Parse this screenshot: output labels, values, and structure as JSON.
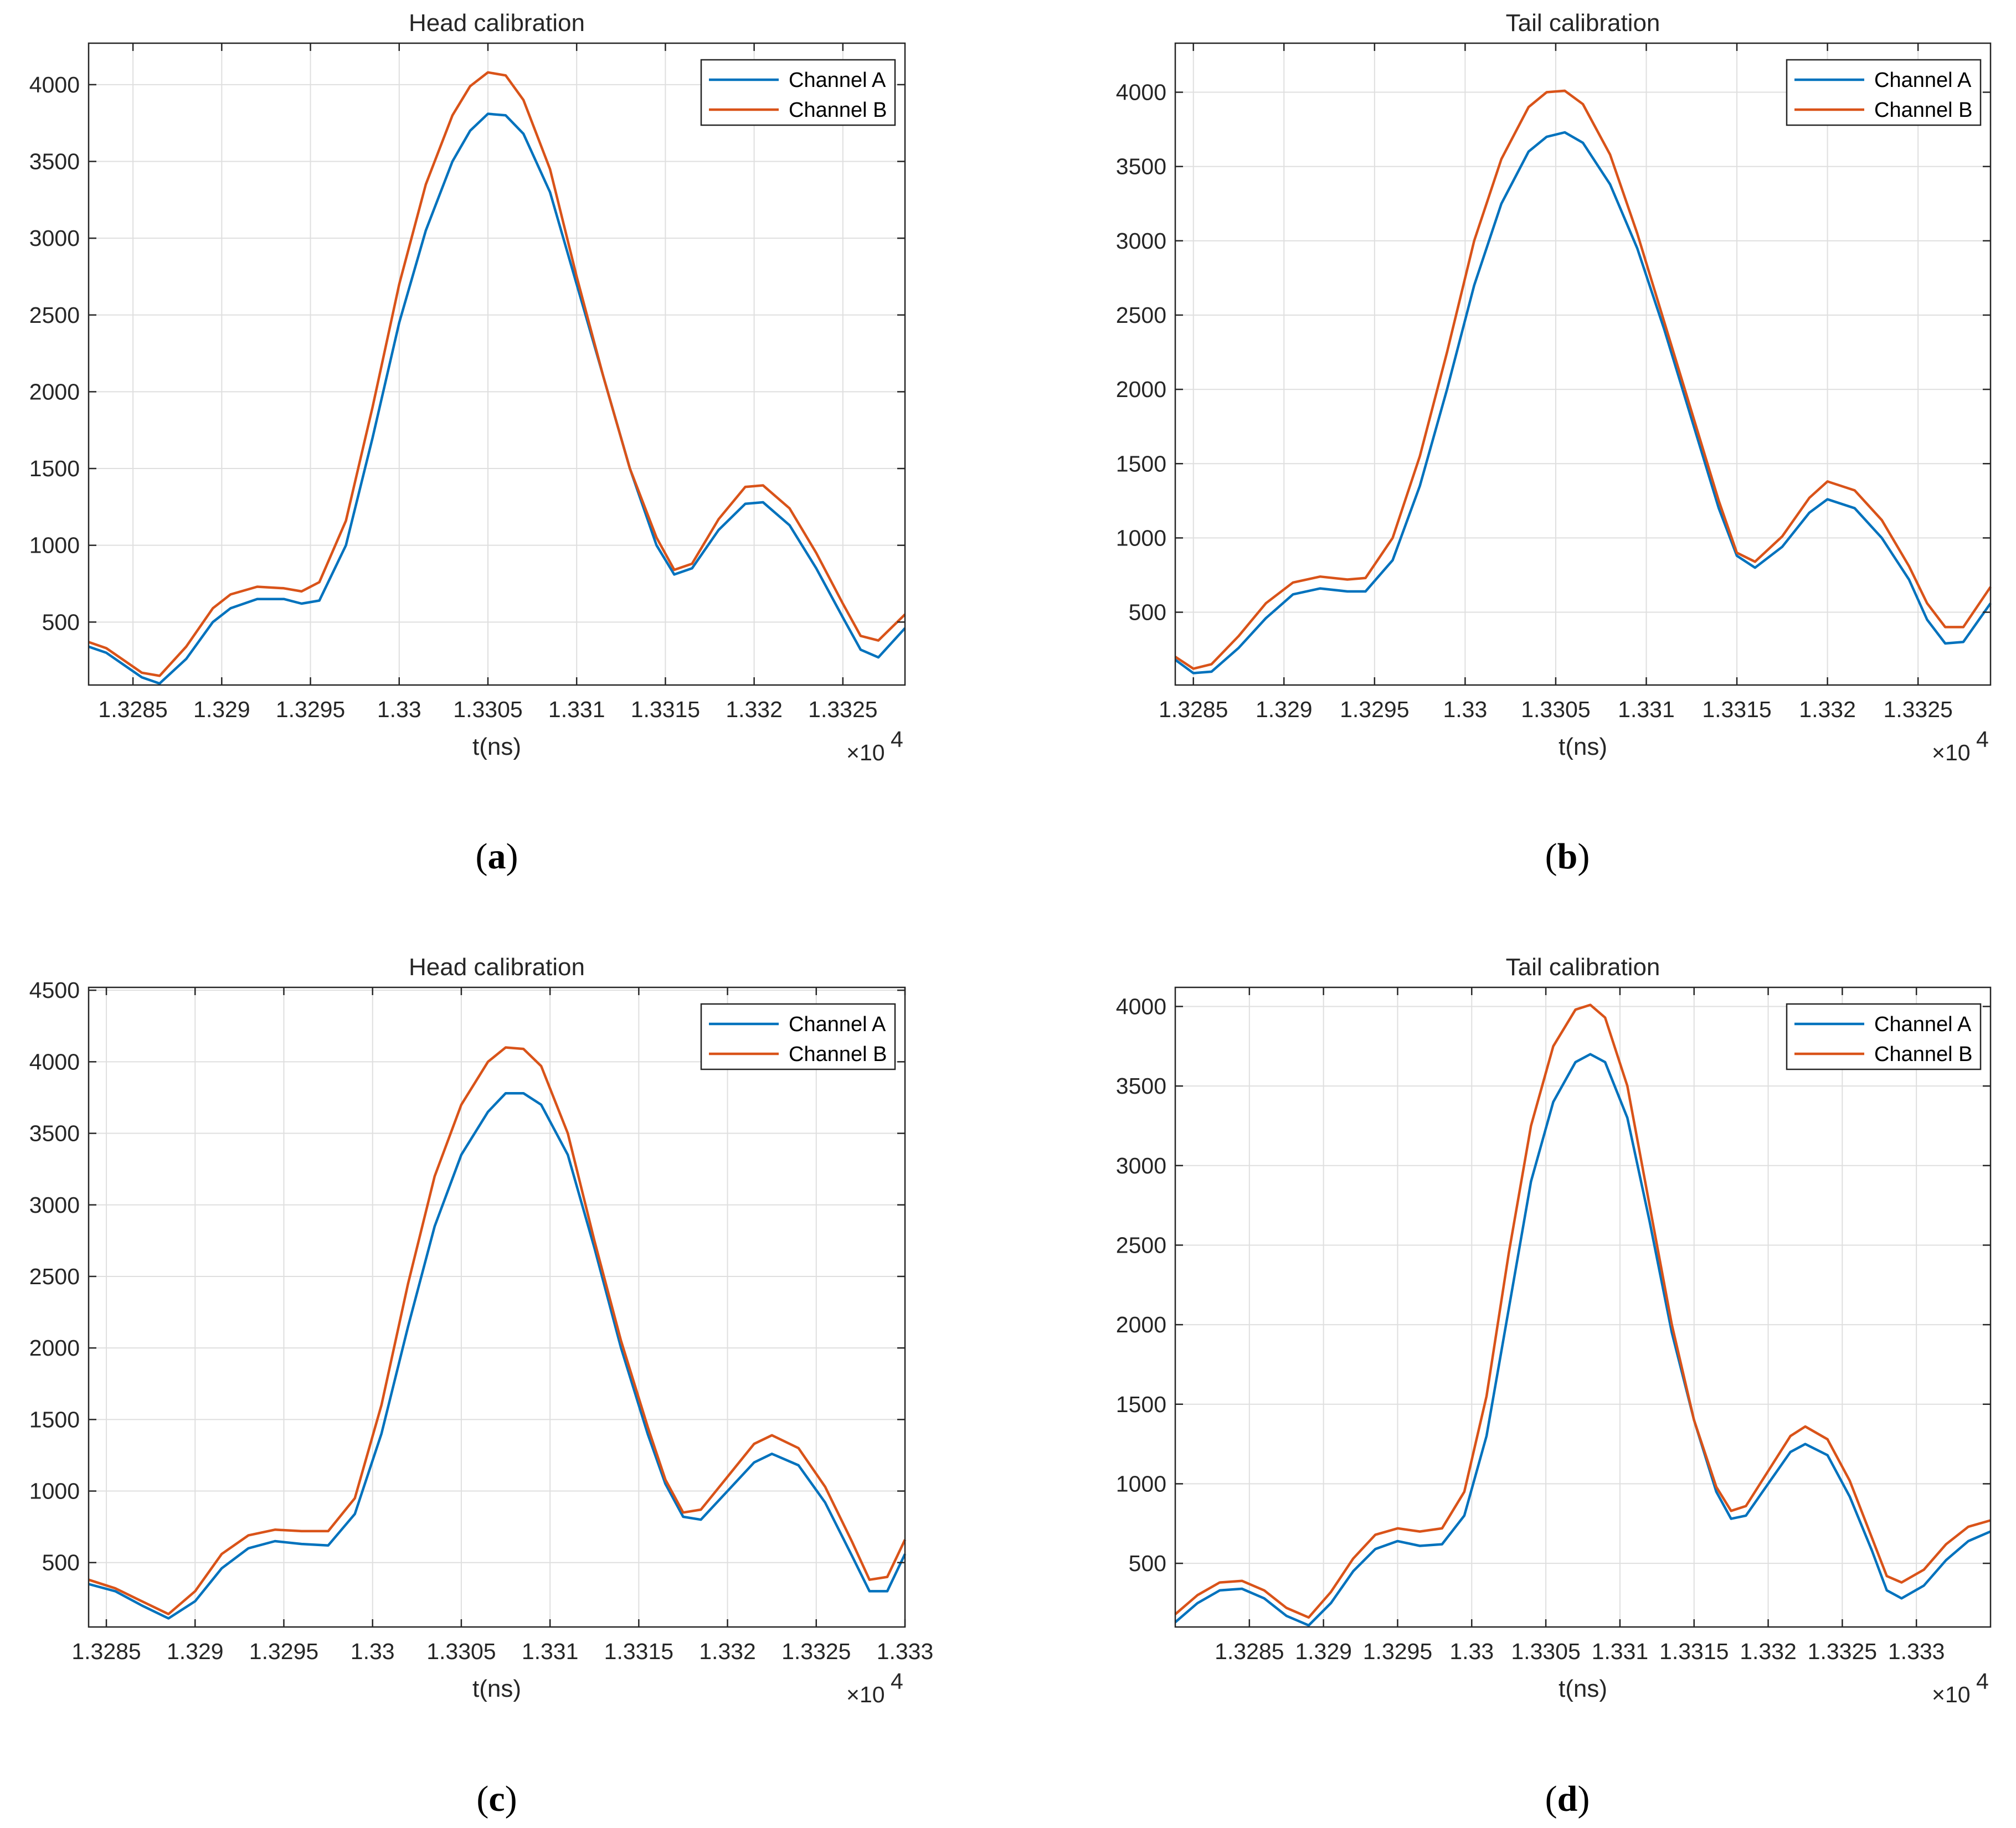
{
  "colors": {
    "channel_a": "#0072BD",
    "channel_b": "#D95319"
  },
  "chart_data": [
    {
      "id": "a",
      "type": "line",
      "title": "Head calibration",
      "panel_label": "a",
      "xlabel": "t(ns)",
      "ylabel": "",
      "x_exponent_label": "×10",
      "x_exponent": "4",
      "xlim": [
        13282.5,
        13328.5
      ],
      "ylim": [
        90,
        4270
      ],
      "xticks": [
        13285,
        13290,
        13295,
        13300,
        13305,
        13310,
        13315,
        13320,
        13325
      ],
      "xtick_labels": [
        "1.3285",
        "1.329",
        "1.3295",
        "1.33",
        "1.3305",
        "1.331",
        "1.3315",
        "1.332",
        "1.3325"
      ],
      "yticks": [
        500,
        1000,
        1500,
        2000,
        2500,
        3000,
        3500,
        4000
      ],
      "grid": true,
      "legend_position": "top-right",
      "series": [
        {
          "name": "Channel A",
          "color_key": "channel_a",
          "x": [
            13282.5,
            13283.5,
            13284.5,
            13285.5,
            13286.5,
            13288,
            13289.5,
            13290.5,
            13292,
            13293.5,
            13294.5,
            13295.5,
            13297,
            13298.5,
            13300,
            13301.5,
            13303,
            13304,
            13305,
            13306,
            13307,
            13308.5,
            13310,
            13311.5,
            13313,
            13314.5,
            13315.5,
            13316.5,
            13318,
            13319.5,
            13320.5,
            13322,
            13323.5,
            13325,
            13326,
            13327,
            13328.5
          ],
          "y": [
            340,
            300,
            220,
            140,
            100,
            260,
            500,
            590,
            650,
            650,
            620,
            640,
            1000,
            1700,
            2450,
            3050,
            3500,
            3700,
            3810,
            3800,
            3680,
            3300,
            2700,
            2100,
            1500,
            1000,
            810,
            850,
            1100,
            1270,
            1280,
            1130,
            850,
            530,
            320,
            270,
            460
          ]
        },
        {
          "name": "Channel B",
          "color_key": "channel_b",
          "x": [
            13282.5,
            13283.5,
            13284.5,
            13285.5,
            13286.5,
            13288,
            13289.5,
            13290.5,
            13292,
            13293.5,
            13294.5,
            13295.5,
            13297,
            13298.5,
            13300,
            13301.5,
            13303,
            13304,
            13305,
            13306,
            13307,
            13308.5,
            13310,
            13311.5,
            13313,
            13314.5,
            13315.5,
            13316.5,
            13318,
            13319.5,
            13320.5,
            13322,
            13323.5,
            13325,
            13326,
            13327,
            13328.5
          ],
          "y": [
            370,
            330,
            250,
            170,
            150,
            340,
            590,
            680,
            730,
            720,
            700,
            760,
            1160,
            1900,
            2700,
            3350,
            3800,
            3990,
            4080,
            4060,
            3900,
            3450,
            2750,
            2100,
            1500,
            1050,
            840,
            880,
            1170,
            1380,
            1390,
            1240,
            950,
            620,
            410,
            380,
            550
          ]
        }
      ]
    },
    {
      "id": "b",
      "type": "line",
      "title": "Tail calibration",
      "panel_label": "b",
      "xlabel": "t(ns)",
      "ylabel": "",
      "x_exponent_label": "×10",
      "x_exponent": "4",
      "xlim": [
        13284,
        13329
      ],
      "ylim": [
        10,
        4330
      ],
      "xticks": [
        13285,
        13290,
        13295,
        13300,
        13305,
        13310,
        13315,
        13320,
        13325
      ],
      "xtick_labels": [
        "1.3285",
        "1.329",
        "1.3295",
        "1.33",
        "1.3305",
        "1.331",
        "1.3315",
        "1.332",
        "1.3325"
      ],
      "yticks": [
        500,
        1000,
        1500,
        2000,
        2500,
        3000,
        3500,
        4000
      ],
      "grid": true,
      "legend_position": "top-right",
      "series": [
        {
          "name": "Channel A",
          "color_key": "channel_a",
          "x": [
            13284,
            13285,
            13286,
            13287.5,
            13289,
            13290.5,
            13292,
            13293.5,
            13294.5,
            13296,
            13297.5,
            13299,
            13300.5,
            13302,
            13303.5,
            13304.5,
            13305.5,
            13306.5,
            13308,
            13309.5,
            13311,
            13312.5,
            13314,
            13315,
            13316,
            13317.5,
            13319,
            13320,
            13321.5,
            13323,
            13324.5,
            13325.5,
            13326.5,
            13327.5,
            13329
          ],
          "y": [
            180,
            90,
            100,
            260,
            460,
            620,
            660,
            640,
            640,
            850,
            1350,
            2000,
            2700,
            3250,
            3600,
            3700,
            3730,
            3660,
            3380,
            2950,
            2400,
            1800,
            1200,
            880,
            800,
            940,
            1170,
            1260,
            1200,
            1000,
            720,
            450,
            290,
            300,
            560
          ]
        },
        {
          "name": "Channel B",
          "color_key": "channel_b",
          "x": [
            13284,
            13285,
            13286,
            13287.5,
            13289,
            13290.5,
            13292,
            13293.5,
            13294.5,
            13296,
            13297.5,
            13299,
            13300.5,
            13302,
            13303.5,
            13304.5,
            13305.5,
            13306.5,
            13308,
            13309.5,
            13311,
            13312.5,
            13314,
            13315,
            13316,
            13317.5,
            13319,
            13320,
            13321.5,
            13323,
            13324.5,
            13325.5,
            13326.5,
            13327.5,
            13329
          ],
          "y": [
            200,
            120,
            150,
            340,
            560,
            700,
            740,
            720,
            730,
            1000,
            1550,
            2250,
            3000,
            3550,
            3900,
            4000,
            4010,
            3920,
            3580,
            3050,
            2450,
            1850,
            1250,
            900,
            840,
            1010,
            1270,
            1380,
            1320,
            1120,
            810,
            560,
            400,
            400,
            670
          ]
        }
      ]
    },
    {
      "id": "c",
      "type": "line",
      "title": "Head calibration",
      "panel_label": "c",
      "xlabel": "t(ns)",
      "ylabel": "",
      "x_exponent_label": "×10",
      "x_exponent": "4",
      "xlim": [
        13284,
        13330
      ],
      "ylim": [
        50,
        4520
      ],
      "xticks": [
        13285,
        13290,
        13295,
        13300,
        13305,
        13310,
        13315,
        13320,
        13325,
        13330
      ],
      "xtick_labels": [
        "1.3285",
        "1.329",
        "1.3295",
        "1.33",
        "1.3305",
        "1.331",
        "1.3315",
        "1.332",
        "1.3325",
        "1.333"
      ],
      "yticks": [
        500,
        1000,
        1500,
        2000,
        2500,
        3000,
        3500,
        4000,
        4500
      ],
      "grid": true,
      "legend_position": "top-right",
      "series": [
        {
          "name": "Channel A",
          "color_key": "channel_a",
          "x": [
            13284,
            13285.5,
            13287,
            13288.5,
            13290,
            13291.5,
            13293,
            13294.5,
            13296,
            13297.5,
            13299,
            13300.5,
            13302,
            13303.5,
            13305,
            13306.5,
            13307.5,
            13308.5,
            13309.5,
            13311,
            13312.5,
            13314,
            13315.5,
            13316.5,
            13317.5,
            13318.5,
            13320,
            13321.5,
            13322.5,
            13324,
            13325.5,
            13327,
            13328,
            13329,
            13330
          ],
          "y": [
            350,
            300,
            200,
            110,
            230,
            460,
            600,
            650,
            630,
            620,
            840,
            1400,
            2150,
            2850,
            3350,
            3650,
            3780,
            3780,
            3700,
            3350,
            2700,
            2000,
            1400,
            1050,
            820,
            800,
            1000,
            1200,
            1260,
            1180,
            920,
            550,
            300,
            300,
            560
          ]
        },
        {
          "name": "Channel B",
          "color_key": "channel_b",
          "x": [
            13284,
            13285.5,
            13287,
            13288.5,
            13290,
            13291.5,
            13293,
            13294.5,
            13296,
            13297.5,
            13299,
            13300.5,
            13302,
            13303.5,
            13305,
            13306.5,
            13307.5,
            13308.5,
            13309.5,
            13311,
            13312.5,
            13314,
            13315.5,
            13316.5,
            13317.5,
            13318.5,
            13320,
            13321.5,
            13322.5,
            13324,
            13325.5,
            13327,
            13328,
            13329,
            13330
          ],
          "y": [
            380,
            320,
            230,
            140,
            300,
            560,
            690,
            730,
            720,
            720,
            950,
            1600,
            2450,
            3200,
            3700,
            4000,
            4100,
            4090,
            3970,
            3500,
            2750,
            2050,
            1450,
            1080,
            850,
            870,
            1100,
            1330,
            1390,
            1300,
            1030,
            650,
            380,
            400,
            660
          ]
        }
      ]
    },
    {
      "id": "d",
      "type": "line",
      "title": "Tail calibration",
      "panel_label": "d",
      "xlabel": "t(ns)",
      "ylabel": "",
      "x_exponent_label": "×10",
      "x_exponent": "4",
      "xlim": [
        13280,
        13335
      ],
      "ylim": [
        100,
        4120
      ],
      "xticks": [
        13285,
        13290,
        13295,
        13300,
        13305,
        13310,
        13315,
        13320,
        13325,
        13330
      ],
      "xtick_labels": [
        "1.3285",
        "1.329",
        "1.3295",
        "1.33",
        "1.3305",
        "1.331",
        "1.3315",
        "1.332",
        "1.3325",
        "1.333"
      ],
      "yticks": [
        500,
        1000,
        1500,
        2000,
        2500,
        3000,
        3500,
        4000
      ],
      "grid": true,
      "legend_position": "top-right",
      "series": [
        {
          "name": "Channel A",
          "color_key": "channel_a",
          "x": [
            13280,
            13281.5,
            13283,
            13284.5,
            13286,
            13287.5,
            13289,
            13290.5,
            13292,
            13293.5,
            13295,
            13296.5,
            13298,
            13299.5,
            13301,
            13302.5,
            13304,
            13305.5,
            13307,
            13308,
            13309,
            13310.5,
            13312,
            13313.5,
            13315,
            13316.5,
            13317.5,
            13318.5,
            13320,
            13321.5,
            13322.5,
            13324,
            13325.5,
            13327,
            13328,
            13329,
            13330.5,
            13332,
            13333.5,
            13335
          ],
          "y": [
            130,
            250,
            330,
            340,
            280,
            170,
            110,
            250,
            450,
            590,
            640,
            610,
            620,
            800,
            1300,
            2100,
            2900,
            3400,
            3650,
            3700,
            3650,
            3300,
            2650,
            1950,
            1400,
            950,
            780,
            800,
            1000,
            1200,
            1250,
            1180,
            920,
            580,
            330,
            280,
            360,
            520,
            640,
            700
          ]
        },
        {
          "name": "Channel B",
          "color_key": "channel_b",
          "x": [
            13280,
            13281.5,
            13283,
            13284.5,
            13286,
            13287.5,
            13289,
            13290.5,
            13292,
            13293.5,
            13295,
            13296.5,
            13298,
            13299.5,
            13301,
            13302.5,
            13304,
            13305.5,
            13307,
            13308,
            13309,
            13310.5,
            13312,
            13313.5,
            13315,
            13316.5,
            13317.5,
            13318.5,
            13320,
            13321.5,
            13322.5,
            13324,
            13325.5,
            13327,
            13328,
            13329,
            13330.5,
            13332,
            13333.5,
            13335
          ],
          "y": [
            180,
            300,
            380,
            390,
            330,
            220,
            160,
            320,
            530,
            680,
            720,
            700,
            720,
            950,
            1550,
            2450,
            3250,
            3750,
            3980,
            4010,
            3930,
            3500,
            2750,
            2000,
            1400,
            980,
            830,
            860,
            1080,
            1300,
            1360,
            1280,
            1020,
            660,
            420,
            380,
            460,
            620,
            730,
            770
          ]
        }
      ]
    }
  ]
}
